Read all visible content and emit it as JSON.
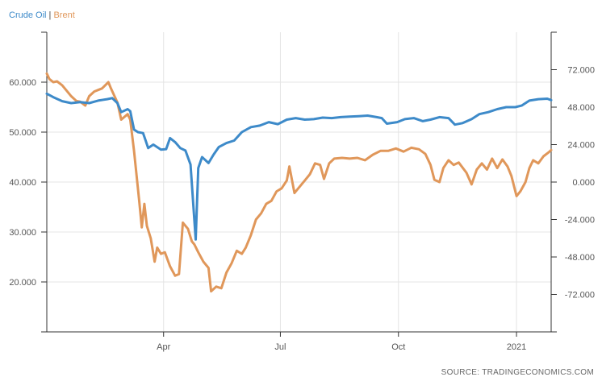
{
  "chart_data": {
    "type": "line",
    "source": "SOURCE: TRADINGECONOMICS.COM",
    "legend_separator": "|",
    "x_range": [
      "2020-01-01",
      "2021-01-28"
    ],
    "x_ticks": [
      {
        "date": "2020-04-01",
        "label": "Apr"
      },
      {
        "date": "2020-07-01",
        "label": "Jul"
      },
      {
        "date": "2020-10-01",
        "label": "Oct"
      },
      {
        "date": "2021-01-01",
        "label": "2021"
      }
    ],
    "y_left": {
      "range": [
        10,
        70
      ],
      "ticks": [
        {
          "v": 20,
          "label": "20.000"
        },
        {
          "v": 30,
          "label": "30.000"
        },
        {
          "v": 40,
          "label": "40.000"
        },
        {
          "v": 50,
          "label": "50.000"
        },
        {
          "v": 60,
          "label": "60.000"
        }
      ]
    },
    "y_right": {
      "range": [
        -96,
        96
      ],
      "ticks": [
        {
          "v": 72,
          "label": "72.000"
        },
        {
          "v": 48,
          "label": "48.000"
        },
        {
          "v": 24,
          "label": "24.000"
        },
        {
          "v": 0,
          "label": "0.000"
        },
        {
          "v": -24,
          "label": "-24.000"
        },
        {
          "v": -48,
          "label": "-48.000"
        },
        {
          "v": -72,
          "label": "-72.000"
        }
      ]
    },
    "grid": true,
    "legend_position": "top-left",
    "series": [
      {
        "name": "Crude Oil",
        "axis": "left",
        "color": "#3d8ac9",
        "points": [
          [
            "2020-01-01",
            57.7
          ],
          [
            "2020-01-06",
            57.0
          ],
          [
            "2020-01-13",
            56.2
          ],
          [
            "2020-01-20",
            55.8
          ],
          [
            "2020-01-27",
            56.0
          ],
          [
            "2020-02-03",
            55.8
          ],
          [
            "2020-02-10",
            56.3
          ],
          [
            "2020-02-17",
            56.6
          ],
          [
            "2020-02-21",
            56.8
          ],
          [
            "2020-02-25",
            55.8
          ],
          [
            "2020-02-28",
            54.0
          ],
          [
            "2020-03-04",
            54.6
          ],
          [
            "2020-03-06",
            54.2
          ],
          [
            "2020-03-09",
            50.5
          ],
          [
            "2020-03-12",
            50.0
          ],
          [
            "2020-03-16",
            49.8
          ],
          [
            "2020-03-18",
            48.3
          ],
          [
            "2020-03-20",
            46.8
          ],
          [
            "2020-03-24",
            47.5
          ],
          [
            "2020-03-30",
            46.5
          ],
          [
            "2020-04-03",
            46.6
          ],
          [
            "2020-04-06",
            48.8
          ],
          [
            "2020-04-10",
            48.0
          ],
          [
            "2020-04-14",
            46.8
          ],
          [
            "2020-04-18",
            46.3
          ],
          [
            "2020-04-22",
            43.5
          ],
          [
            "2020-04-26",
            28.5
          ],
          [
            "2020-04-28",
            42.8
          ],
          [
            "2020-05-01",
            45.0
          ],
          [
            "2020-05-06",
            43.8
          ],
          [
            "2020-05-10",
            45.5
          ],
          [
            "2020-05-14",
            47.0
          ],
          [
            "2020-05-20",
            47.8
          ],
          [
            "2020-05-26",
            48.3
          ],
          [
            "2020-06-01",
            50.0
          ],
          [
            "2020-06-08",
            51.0
          ],
          [
            "2020-06-15",
            51.3
          ],
          [
            "2020-06-22",
            52.0
          ],
          [
            "2020-06-29",
            51.6
          ],
          [
            "2020-07-06",
            52.5
          ],
          [
            "2020-07-13",
            52.8
          ],
          [
            "2020-07-20",
            52.5
          ],
          [
            "2020-07-27",
            52.6
          ],
          [
            "2020-08-03",
            52.9
          ],
          [
            "2020-08-10",
            52.8
          ],
          [
            "2020-08-17",
            53.0
          ],
          [
            "2020-08-24",
            53.1
          ],
          [
            "2020-08-31",
            53.2
          ],
          [
            "2020-09-07",
            53.3
          ],
          [
            "2020-09-14",
            53.0
          ],
          [
            "2020-09-18",
            52.8
          ],
          [
            "2020-09-22",
            51.7
          ],
          [
            "2020-09-30",
            52.0
          ],
          [
            "2020-10-06",
            52.6
          ],
          [
            "2020-10-13",
            52.8
          ],
          [
            "2020-10-20",
            52.2
          ],
          [
            "2020-10-26",
            52.5
          ],
          [
            "2020-11-02",
            53.0
          ],
          [
            "2020-11-09",
            52.8
          ],
          [
            "2020-11-14",
            51.5
          ],
          [
            "2020-11-20",
            51.8
          ],
          [
            "2020-11-27",
            52.6
          ],
          [
            "2020-12-03",
            53.6
          ],
          [
            "2020-12-10",
            54.0
          ],
          [
            "2020-12-17",
            54.6
          ],
          [
            "2020-12-24",
            55.0
          ],
          [
            "2020-12-31",
            55.0
          ],
          [
            "2021-01-05",
            55.3
          ],
          [
            "2021-01-11",
            56.3
          ],
          [
            "2021-01-18",
            56.6
          ],
          [
            "2021-01-25",
            56.7
          ],
          [
            "2021-01-28",
            56.4
          ]
        ]
      },
      {
        "name": "Brent",
        "axis": "right",
        "color": "#e0975a",
        "points": [
          [
            "2020-01-01",
            69.5
          ],
          [
            "2020-01-03",
            66.0
          ],
          [
            "2020-01-06",
            64.0
          ],
          [
            "2020-01-09",
            64.5
          ],
          [
            "2020-01-13",
            62.0
          ],
          [
            "2020-01-17",
            58.0
          ],
          [
            "2020-01-20",
            55.0
          ],
          [
            "2020-01-24",
            52.0
          ],
          [
            "2020-01-27",
            51.5
          ],
          [
            "2020-01-31",
            49.0
          ],
          [
            "2020-02-03",
            55.0
          ],
          [
            "2020-02-07",
            58.0
          ],
          [
            "2020-02-10",
            59.0
          ],
          [
            "2020-02-13",
            60.0
          ],
          [
            "2020-02-18",
            64.0
          ],
          [
            "2020-02-20",
            60.0
          ],
          [
            "2020-02-25",
            51.0
          ],
          [
            "2020-02-28",
            40.0
          ],
          [
            "2020-03-04",
            43.5
          ],
          [
            "2020-03-06",
            40.0
          ],
          [
            "2020-03-09",
            20.0
          ],
          [
            "2020-03-13",
            -12.0
          ],
          [
            "2020-03-15",
            -29.0
          ],
          [
            "2020-03-17",
            -14.0
          ],
          [
            "2020-03-19",
            -28.0
          ],
          [
            "2020-03-22",
            -36.0
          ],
          [
            "2020-03-25",
            -51.0
          ],
          [
            "2020-03-27",
            -42.0
          ],
          [
            "2020-03-30",
            -46.0
          ],
          [
            "2020-04-02",
            -45.0
          ],
          [
            "2020-04-06",
            -54.0
          ],
          [
            "2020-04-10",
            -60.0
          ],
          [
            "2020-04-13",
            -59.0
          ],
          [
            "2020-04-16",
            -26.0
          ],
          [
            "2020-04-20",
            -30.0
          ],
          [
            "2020-04-23",
            -38.0
          ],
          [
            "2020-04-25",
            -40.0
          ],
          [
            "2020-04-28",
            -45.0
          ],
          [
            "2020-05-02",
            -51.0
          ],
          [
            "2020-05-06",
            -55.0
          ],
          [
            "2020-05-08",
            -70.0
          ],
          [
            "2020-05-12",
            -67.0
          ],
          [
            "2020-05-16",
            -68.0
          ],
          [
            "2020-05-20",
            -58.0
          ],
          [
            "2020-05-24",
            -52.0
          ],
          [
            "2020-05-28",
            -44.0
          ],
          [
            "2020-06-01",
            -46.0
          ],
          [
            "2020-06-04",
            -42.0
          ],
          [
            "2020-06-08",
            -34.0
          ],
          [
            "2020-06-12",
            -24.0
          ],
          [
            "2020-06-16",
            -20.0
          ],
          [
            "2020-06-20",
            -14.0
          ],
          [
            "2020-06-24",
            -12.0
          ],
          [
            "2020-06-28",
            -6.0
          ],
          [
            "2020-07-02",
            -4.0
          ],
          [
            "2020-07-06",
            1.0
          ],
          [
            "2020-07-08",
            10.0
          ],
          [
            "2020-07-12",
            -7.0
          ],
          [
            "2020-07-16",
            -3.0
          ],
          [
            "2020-07-20",
            1.0
          ],
          [
            "2020-07-24",
            5.0
          ],
          [
            "2020-07-28",
            12.0
          ],
          [
            "2020-08-01",
            11.0
          ],
          [
            "2020-08-04",
            2.0
          ],
          [
            "2020-08-08",
            12.0
          ],
          [
            "2020-08-12",
            15.0
          ],
          [
            "2020-08-18",
            15.5
          ],
          [
            "2020-08-24",
            15.0
          ],
          [
            "2020-08-30",
            15.5
          ],
          [
            "2020-09-05",
            14.0
          ],
          [
            "2020-09-11",
            17.5
          ],
          [
            "2020-09-17",
            20.0
          ],
          [
            "2020-09-23",
            20.0
          ],
          [
            "2020-09-29",
            21.5
          ],
          [
            "2020-10-05",
            19.5
          ],
          [
            "2020-10-11",
            22.0
          ],
          [
            "2020-10-17",
            21.0
          ],
          [
            "2020-10-22",
            18.0
          ],
          [
            "2020-10-26",
            11.0
          ],
          [
            "2020-10-29",
            1.5
          ],
          [
            "2020-11-02",
            0.0
          ],
          [
            "2020-11-05",
            9.0
          ],
          [
            "2020-11-09",
            14.0
          ],
          [
            "2020-11-13",
            11.0
          ],
          [
            "2020-11-17",
            12.5
          ],
          [
            "2020-11-23",
            6.0
          ],
          [
            "2020-11-27",
            -1.5
          ],
          [
            "2020-12-01",
            8.0
          ],
          [
            "2020-12-05",
            12.0
          ],
          [
            "2020-12-09",
            8.0
          ],
          [
            "2020-12-13",
            15.0
          ],
          [
            "2020-12-17",
            9.0
          ],
          [
            "2020-12-21",
            14.5
          ],
          [
            "2020-12-25",
            10.0
          ],
          [
            "2020-12-28",
            4.0
          ],
          [
            "2021-01-01",
            -9.0
          ],
          [
            "2021-01-04",
            -6.0
          ],
          [
            "2021-01-08",
            0.0
          ],
          [
            "2021-01-11",
            9.0
          ],
          [
            "2021-01-14",
            14.0
          ],
          [
            "2021-01-18",
            12.0
          ],
          [
            "2021-01-22",
            16.5
          ],
          [
            "2021-01-26",
            19.0
          ],
          [
            "2021-01-28",
            20.5
          ]
        ]
      }
    ]
  }
}
